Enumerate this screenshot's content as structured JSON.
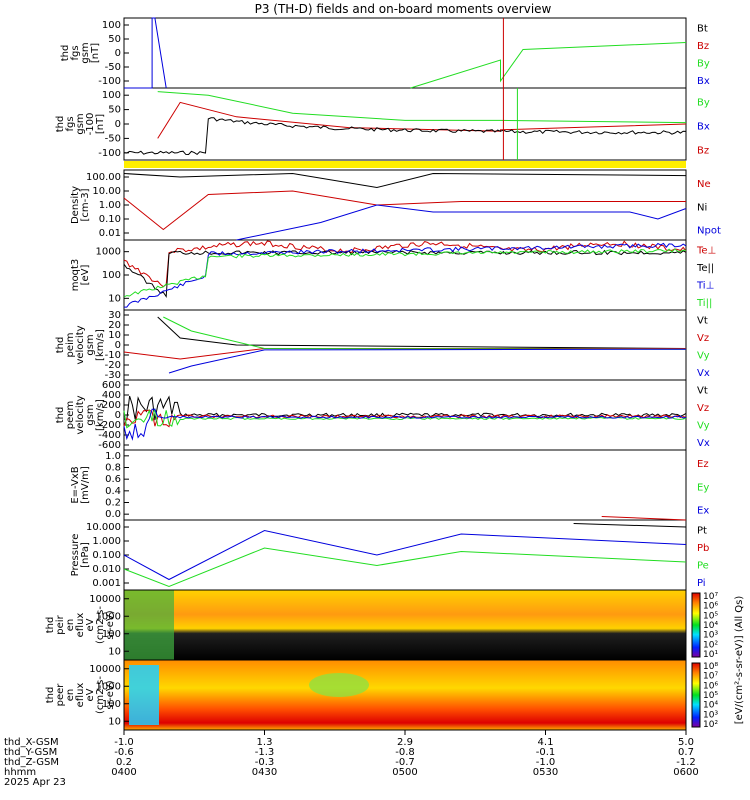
{
  "title": "P3 (TH-D) fields and on-board moments overview",
  "colors": {
    "black": "#000000",
    "red": "#cc0000",
    "green": "#22dd22",
    "blue": "#0000dd",
    "yellow": "#ffee00"
  },
  "chart_data": {
    "type": "line",
    "x_axis": {
      "rows": [
        {
          "label": "thd_X-GSM",
          "values": [
            "-1.0",
            "1.3",
            "2.9",
            "4.1",
            "5.0"
          ]
        },
        {
          "label": "thd_Y-GSM",
          "values": [
            "-0.6",
            "-1.3",
            "-0.8",
            "-0.1",
            "0.7"
          ]
        },
        {
          "label": "thd_Z-GSM",
          "values": [
            "0.2",
            "-0.3",
            "-0.7",
            "-1.0",
            "-1.2"
          ]
        },
        {
          "label": "hhmm",
          "values": [
            "0400",
            "0430",
            "0500",
            "0530",
            "0600"
          ]
        }
      ],
      "date": "2025 Apr 23",
      "range": [
        "0400",
        "0600"
      ]
    },
    "panels": [
      {
        "id": "fgs",
        "ylabel": [
          "thd",
          "fgs",
          "gsm",
          "[nT]"
        ],
        "ticks": [
          "100",
          "50",
          "0",
          "-50",
          "-100"
        ],
        "ylim": [
          -100,
          100
        ],
        "legend": [
          {
            "name": "Bt",
            "color": "black"
          },
          {
            "name": "Bz",
            "color": "red"
          },
          {
            "name": "By",
            "color": "green"
          },
          {
            "name": "Bx",
            "color": "blue"
          }
        ]
      },
      {
        "id": "fgs_dsl",
        "ylabel": [
          "thd",
          "fgs",
          "gsm",
          "-100",
          "[nT]"
        ],
        "ticks": [
          "100",
          "50",
          "0",
          "-50",
          "-100"
        ],
        "ylim": [
          -120,
          120
        ],
        "legend": [
          {
            "name": "By",
            "color": "green"
          },
          {
            "name": "Bx",
            "color": "blue"
          },
          {
            "name": "Bz",
            "color": "red"
          }
        ]
      },
      {
        "id": "density",
        "ylabel": [
          "Density",
          "[cm-3]"
        ],
        "ticks": [
          "100.00",
          "10.00",
          "1.00",
          "0.10",
          "0.01"
        ],
        "log": true,
        "legend": [
          {
            "name": "Ne",
            "color": "red"
          },
          {
            "name": "Ni",
            "color": "black"
          },
          {
            "name": "Npot",
            "color": "blue"
          }
        ]
      },
      {
        "id": "temp",
        "ylabel": [
          "moqt3",
          "[eV]"
        ],
        "ticks": [
          "1000",
          "100",
          "10"
        ],
        "log": true,
        "legend": [
          {
            "name": "Te⊥",
            "color": "red"
          },
          {
            "name": "Te||",
            "color": "black"
          },
          {
            "name": "Ti⊥",
            "color": "blue"
          },
          {
            "name": "Ti||",
            "color": "green"
          }
        ]
      },
      {
        "id": "peim",
        "ylabel": [
          "thd",
          "peim",
          "velocity",
          "gsm",
          "[km/s]"
        ],
        "ticks": [
          "30",
          "20",
          "10",
          "0",
          "-10",
          "-20",
          "-30"
        ],
        "ylim": [
          -30,
          35
        ],
        "legend": [
          {
            "name": "Vt",
            "color": "black"
          },
          {
            "name": "Vz",
            "color": "red"
          },
          {
            "name": "Vy",
            "color": "green"
          },
          {
            "name": "Vx",
            "color": "blue"
          }
        ]
      },
      {
        "id": "peem",
        "ylabel": [
          "thd",
          "peem",
          "velocity",
          "gsm",
          "[km/s]"
        ],
        "ticks": [
          "600",
          "400",
          "200",
          "0",
          "-200",
          "-400",
          "-600"
        ],
        "ylim": [
          -600,
          600
        ],
        "legend": [
          {
            "name": "Vt",
            "color": "black"
          },
          {
            "name": "Vz",
            "color": "red"
          },
          {
            "name": "Vy",
            "color": "green"
          },
          {
            "name": "Vx",
            "color": "blue"
          }
        ]
      },
      {
        "id": "efield",
        "ylabel": [
          "E=-VxB",
          "[mV/m]"
        ],
        "ticks": [
          "1.0",
          "0.8",
          "0.6",
          "0.4",
          "0.2",
          "0.0"
        ],
        "ylim": [
          0,
          1
        ],
        "legend": [
          {
            "name": "Ez",
            "color": "red"
          },
          {
            "name": "Ey",
            "color": "green"
          },
          {
            "name": "Ex",
            "color": "blue"
          }
        ]
      },
      {
        "id": "pressure",
        "ylabel": [
          "Pressure",
          "[nPa]"
        ],
        "ticks": [
          "10.000",
          "1.000",
          "0.100",
          "0.010",
          "0.001"
        ],
        "log": true,
        "legend": [
          {
            "name": "Pt",
            "color": "black"
          },
          {
            "name": "Pb",
            "color": "red"
          },
          {
            "name": "Pe",
            "color": "green"
          },
          {
            "name": "Pi",
            "color": "blue"
          }
        ]
      },
      {
        "id": "peir",
        "ylabel": [
          "thd",
          "peir",
          "en",
          "eflux",
          "eV",
          "(cm2-s-",
          "sr-eV)"
        ],
        "ticks": [
          "10000",
          "1000",
          "100",
          "10"
        ],
        "log": true
      },
      {
        "id": "peer",
        "ylabel": [
          "thd",
          "peer",
          "en",
          "eflux",
          "eV",
          "(cm2-s-",
          "sr-eV)"
        ],
        "ticks": [
          "10000",
          "1000",
          "100",
          "10"
        ],
        "log": true
      }
    ],
    "colorbar": {
      "label": "[eV/(cm²-s-sr-eV)] (All Qs)",
      "peir_ticks": [
        "10⁷",
        "10⁶",
        "10⁵",
        "10⁴",
        "10³",
        "10²",
        "10¹"
      ],
      "peer_ticks": [
        "10⁸",
        "10⁷",
        "10⁶",
        "10⁵",
        "10⁴",
        "10³",
        "10²"
      ]
    }
  }
}
